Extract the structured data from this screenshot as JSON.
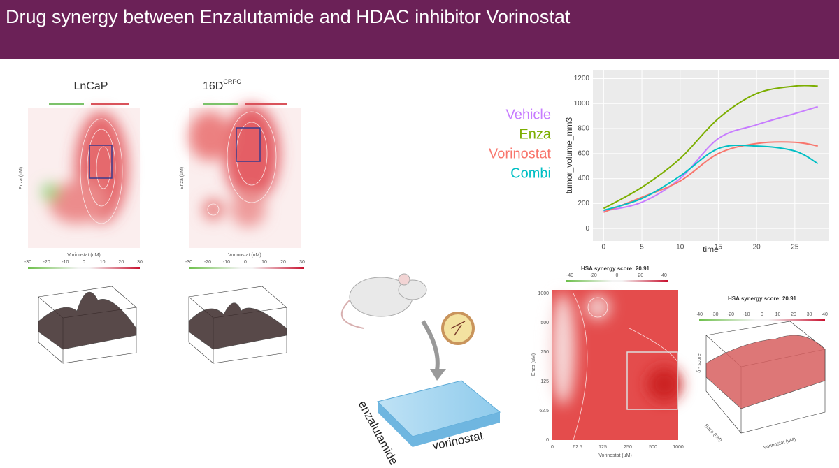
{
  "header": {
    "title": "Drug synergy between Enzalutamide and HDAC inhibitor Vorinostat"
  },
  "panels": {
    "lncap": {
      "title": "LnCaP",
      "x_label": "Vorinostat (uM)",
      "y_label": "Enza (uM)",
      "colorbar_ticks": [
        -30,
        -20,
        -10,
        0,
        10,
        20,
        30
      ]
    },
    "crpc": {
      "title": "16D",
      "title_superscript": "CRPC",
      "x_label": "Vorinostat (uM)",
      "y_label": "Enza (uM)",
      "colorbar_ticks": [
        -30,
        -20,
        -10,
        0,
        10,
        20,
        30
      ]
    },
    "hsa_heatmap": {
      "title": "HSA synergy score: 20.91",
      "x_label": "Vorinostat (uM)",
      "y_label": "Enza (uM)",
      "colorbar_ticks": [
        -40,
        -20,
        0,
        20,
        40
      ],
      "xticks": [
        "0",
        "62.5",
        "125",
        "250",
        "500",
        "1000"
      ],
      "yticks": [
        "1000",
        "500",
        "250",
        "125",
        "62.5",
        "0"
      ]
    },
    "hsa_surface": {
      "title": "HSA synergy score: 20.91",
      "z_label": "δ - score",
      "x_label": "Vorinostat (uM)",
      "y_label": "Enza (uM)",
      "colorbar_ticks": [
        -40,
        -30,
        -20,
        -10,
        0,
        10,
        20,
        30,
        40
      ]
    }
  },
  "diagram": {
    "plate_left_label": "enzalutamide",
    "plate_bottom_label": "vorinostat"
  },
  "chart_data": {
    "type": "line",
    "x_label": "time",
    "y_label": "tumor_volume_mm3",
    "x": [
      0,
      5,
      10,
      15,
      20,
      25,
      28
    ],
    "series": [
      {
        "name": "Vehicle",
        "color": "#c77cff",
        "values": [
          140,
          210,
          400,
          720,
          830,
          920,
          975
        ]
      },
      {
        "name": "Enza",
        "color": "#7cae00",
        "values": [
          160,
          330,
          560,
          880,
          1080,
          1140,
          1140
        ]
      },
      {
        "name": "Vorinostat",
        "color": "#f8766d",
        "values": [
          130,
          250,
          380,
          600,
          680,
          690,
          660
        ]
      },
      {
        "name": "Combi",
        "color": "#00bfc4",
        "values": [
          145,
          240,
          420,
          640,
          660,
          620,
          520
        ]
      }
    ],
    "xlim": [
      -1.4,
      29.4
    ],
    "ylim": [
      -100,
      1270
    ],
    "xticks": [
      0,
      5,
      10,
      15,
      20,
      25
    ],
    "yticks": [
      0,
      200,
      400,
      600,
      800,
      1000,
      1200
    ],
    "grid": true
  }
}
